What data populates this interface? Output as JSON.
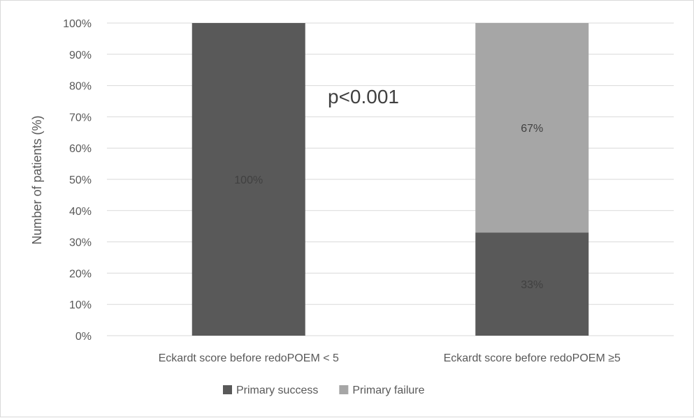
{
  "chart_data": {
    "type": "bar",
    "stacked": true,
    "percent_stacked": true,
    "categories": [
      "Eckardt score before redoPOEM < 5",
      "Eckardt score before redoPOEM ≥5"
    ],
    "series": [
      {
        "name": "Primary success",
        "values": [
          100,
          33
        ],
        "color": "#595959",
        "data_labels": [
          "100%",
          "33%"
        ]
      },
      {
        "name": "Primary failure",
        "values": [
          0,
          67
        ],
        "color": "#a6a6a6",
        "data_labels": [
          "",
          "67%"
        ]
      }
    ],
    "title": "",
    "xlabel": "",
    "ylabel": "Number of patients (%)",
    "ylim": [
      0,
      100
    ],
    "yticks": [
      "0%",
      "10%",
      "20%",
      "30%",
      "40%",
      "50%",
      "60%",
      "70%",
      "80%",
      "90%",
      "100%"
    ],
    "grid": true,
    "legend_position": "bottom",
    "annotation": "p<0.001",
    "gridline_color": "#d9d9d9"
  }
}
